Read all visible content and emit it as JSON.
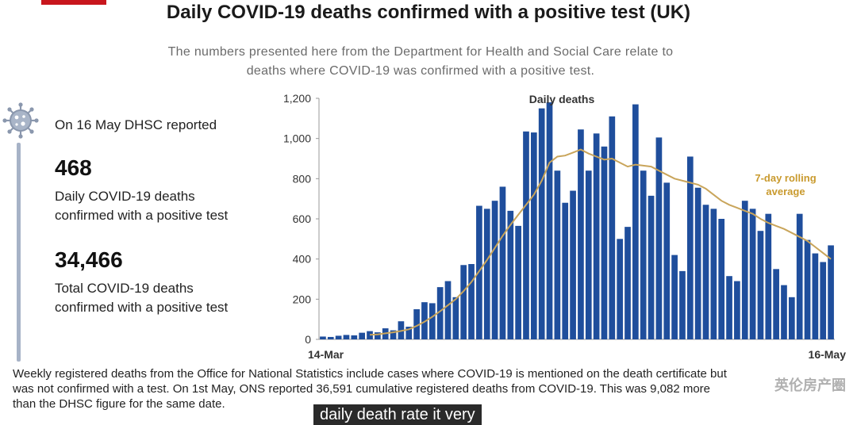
{
  "header": {
    "title": "Daily COVID-19 deaths confirmed with a positive test (UK)",
    "subtitle_line1": "The numbers presented here from the Department for Health and Social Care relate to",
    "subtitle_line2": "deaths where COVID-19 was confirmed with a positive test."
  },
  "summary": {
    "reported": "On 16 May DHSC reported",
    "daily_number": "468",
    "daily_label_line1": "Daily COVID-19 deaths",
    "daily_label_line2": "confirmed with a positive test",
    "total_number": "34,466",
    "total_label_line1": "Total COVID-19 deaths",
    "total_label_line2": "confirmed with a positive test"
  },
  "footnote": {
    "line1": "Weekly registered deaths from the Office for National Statistics include cases where COVID-19 is mentioned on the death certificate but",
    "line2": "was not confirmed with a test. On 1st May, ONS reported 36,591 cumulative registered deaths from COVID-19. This was 9,082 more",
    "line3": "than the DHSC figure for the same date."
  },
  "overlay": {
    "caption": "daily death rate it very",
    "watermark": "英伦房产圈"
  },
  "colors": {
    "bar": "#1f4e9c",
    "rolling_line": "#c9a55b",
    "rolling_label": "#c99a2e",
    "axis_text": "#333333",
    "grid": "#e4e4e4",
    "brand": "#c8161d"
  },
  "chart_data": {
    "type": "bar",
    "title": "",
    "x_start_label": "14-Mar",
    "x_end_label": "16-May",
    "ylim": [
      0,
      1200
    ],
    "y_ticks": [
      0,
      200,
      400,
      600,
      800,
      1000,
      1200
    ],
    "y_tick_labels": [
      "0",
      "200",
      "400",
      "600",
      "800",
      "1,000",
      "1,200"
    ],
    "grid": false,
    "series": [
      {
        "name": "Daily deaths",
        "type": "bar",
        "values": [
          14,
          12,
          18,
          22,
          20,
          33,
          41,
          35,
          55,
          45,
          90,
          63,
          150,
          185,
          180,
          260,
          290,
          210,
          370,
          375,
          665,
          650,
          690,
          760,
          640,
          565,
          1035,
          1030,
          1150,
          1180,
          840,
          680,
          740,
          1045,
          840,
          1025,
          960,
          1110,
          500,
          560,
          1170,
          840,
          715,
          1005,
          780,
          420,
          340,
          910,
          755,
          670,
          650,
          600,
          315,
          290,
          690,
          650,
          540,
          625,
          350,
          270,
          210,
          625,
          495,
          428,
          385,
          468
        ]
      },
      {
        "name": "7-day rolling average",
        "type": "line",
        "values": [
          null,
          null,
          null,
          null,
          null,
          null,
          23,
          25,
          30,
          35,
          42,
          50,
          67,
          88,
          112,
          140,
          170,
          200,
          240,
          285,
          340,
          395,
          455,
          515,
          570,
          620,
          670,
          720,
          790,
          880,
          910,
          915,
          930,
          945,
          925,
          910,
          895,
          900,
          880,
          860,
          870,
          865,
          860,
          840,
          820,
          800,
          790,
          780,
          770,
          750,
          720,
          690,
          670,
          655,
          640,
          625,
          600,
          580,
          565,
          550,
          530,
          510,
          490,
          460,
          430,
          400
        ]
      }
    ],
    "annotations": [
      "Daily deaths",
      "7-day rolling",
      "average"
    ]
  }
}
